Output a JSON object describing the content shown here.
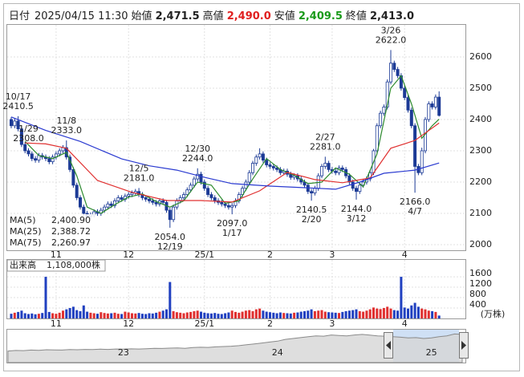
{
  "header": {
    "date_label": "日付",
    "date": "2025/04/15 11:30",
    "fields": [
      {
        "label": "始値",
        "value": "2,471.5"
      },
      {
        "label": "高値",
        "value": "2,490.0",
        "color": "#e02020"
      },
      {
        "label": "安値",
        "value": "2,409.5",
        "color": "#1a9a1a"
      },
      {
        "label": "終値",
        "value": "2,413.0"
      }
    ]
  },
  "chart_data": {
    "type": "candlestick",
    "categories": [
      null,
      null,
      null,
      null,
      null,
      null,
      null,
      null,
      null,
      null,
      null,
      null,
      null,
      "11",
      null,
      null,
      null,
      null,
      null,
      null,
      null,
      null,
      null,
      null,
      null,
      null,
      null,
      null,
      null,
      null,
      null,
      null,
      null,
      null,
      "12",
      null,
      null,
      null,
      null,
      null,
      null,
      null,
      null,
      null,
      null,
      null,
      null,
      null,
      null,
      null,
      null,
      null,
      null,
      null,
      null,
      null,
      "25/1",
      null,
      null,
      null,
      null,
      null,
      null,
      null,
      null,
      null,
      null,
      null,
      null,
      null,
      null,
      null,
      null,
      null,
      null,
      "2",
      null,
      null,
      null,
      null,
      null,
      null,
      null,
      null,
      null,
      null,
      null,
      null,
      null,
      null,
      null,
      null,
      null,
      "3",
      null,
      null,
      null,
      null,
      null,
      null,
      null,
      null,
      null,
      null,
      null,
      null,
      null,
      null,
      null,
      null,
      null,
      null,
      null,
      null,
      "4",
      null,
      null,
      null,
      null,
      null,
      null,
      null,
      null,
      null,
      null
    ],
    "ohlc": [
      [
        2400,
        2408,
        2372,
        2380
      ],
      [
        2380,
        2403,
        2372,
        2395
      ],
      [
        2395,
        2410.5,
        2362,
        2370
      ],
      [
        2370,
        2378,
        2312,
        2320
      ],
      [
        2320,
        2328,
        2292,
        2300
      ],
      [
        2300,
        2308,
        2282,
        2290
      ],
      [
        2290,
        2298,
        2267,
        2275
      ],
      [
        2275,
        2283,
        2262,
        2270
      ],
      [
        2270,
        2293,
        2262,
        2285
      ],
      [
        2285,
        2293,
        2272,
        2280
      ],
      [
        2280,
        2288,
        2267,
        2275
      ],
      [
        2275,
        2283,
        2257,
        2265
      ],
      [
        2265,
        2288,
        2257,
        2280
      ],
      [
        2280,
        2298,
        2272,
        2290
      ],
      [
        2290,
        2308,
        2282,
        2300
      ],
      [
        2300,
        2318,
        2292,
        2310
      ],
      [
        2310,
        2333,
        2272,
        2280
      ],
      [
        2280,
        2288,
        2232,
        2240
      ],
      [
        2240,
        2248,
        2182,
        2190
      ],
      [
        2190,
        2198,
        2142,
        2150
      ],
      [
        2150,
        2158,
        2112,
        2120
      ],
      [
        2120,
        2128,
        2092,
        2100
      ],
      [
        2100,
        2108,
        2082,
        2090
      ],
      [
        2090,
        2103,
        2082,
        2095
      ],
      [
        2095,
        2113,
        2087,
        2105
      ],
      [
        2105,
        2113,
        2092,
        2100
      ],
      [
        2100,
        2118,
        2092,
        2110
      ],
      [
        2110,
        2128,
        2102,
        2120
      ],
      [
        2120,
        2138,
        2112,
        2130
      ],
      [
        2130,
        2138,
        2117,
        2125
      ],
      [
        2125,
        2148,
        2117,
        2140
      ],
      [
        2140,
        2158,
        2132,
        2150
      ],
      [
        2150,
        2158,
        2137,
        2145
      ],
      [
        2145,
        2163,
        2137,
        2155
      ],
      [
        2155,
        2168,
        2147,
        2160
      ],
      [
        2160,
        2173,
        2152,
        2165
      ],
      [
        2165,
        2178,
        2157,
        2170
      ],
      [
        2170,
        2181,
        2152,
        2160
      ],
      [
        2160,
        2168,
        2142,
        2150
      ],
      [
        2150,
        2158,
        2137,
        2145
      ],
      [
        2145,
        2153,
        2132,
        2140
      ],
      [
        2140,
        2148,
        2127,
        2135
      ],
      [
        2135,
        2143,
        2122,
        2130
      ],
      [
        2130,
        2148,
        2122,
        2140
      ],
      [
        2140,
        2148,
        2127,
        2135
      ],
      [
        2135,
        2143,
        2102,
        2110
      ],
      [
        2110,
        2118,
        2054,
        2080
      ],
      [
        2080,
        2128,
        2072,
        2120
      ],
      [
        2120,
        2148,
        2112,
        2140
      ],
      [
        2140,
        2158,
        2132,
        2150
      ],
      [
        2150,
        2168,
        2142,
        2160
      ],
      [
        2160,
        2183,
        2152,
        2175
      ],
      [
        2175,
        2198,
        2167,
        2190
      ],
      [
        2190,
        2218,
        2182,
        2210
      ],
      [
        2210,
        2244,
        2202,
        2225
      ],
      [
        2225,
        2233,
        2192,
        2200
      ],
      [
        2200,
        2208,
        2172,
        2180
      ],
      [
        2180,
        2188,
        2152,
        2160
      ],
      [
        2160,
        2168,
        2142,
        2150
      ],
      [
        2150,
        2158,
        2132,
        2140
      ],
      [
        2140,
        2148,
        2127,
        2135
      ],
      [
        2135,
        2143,
        2122,
        2130
      ],
      [
        2130,
        2138,
        2117,
        2125
      ],
      [
        2125,
        2133,
        2112,
        2120
      ],
      [
        2120,
        2133,
        2097,
        2125
      ],
      [
        2125,
        2148,
        2117,
        2140
      ],
      [
        2140,
        2168,
        2132,
        2160
      ],
      [
        2160,
        2188,
        2152,
        2180
      ],
      [
        2180,
        2208,
        2172,
        2200
      ],
      [
        2200,
        2238,
        2192,
        2230
      ],
      [
        2230,
        2268,
        2222,
        2260
      ],
      [
        2260,
        2288,
        2252,
        2280
      ],
      [
        2280,
        2308,
        2272,
        2290
      ],
      [
        2290,
        2298,
        2262,
        2270
      ],
      [
        2270,
        2278,
        2247,
        2255
      ],
      [
        2255,
        2263,
        2242,
        2250
      ],
      [
        2250,
        2258,
        2237,
        2245
      ],
      [
        2245,
        2253,
        2232,
        2240
      ],
      [
        2240,
        2248,
        2222,
        2230
      ],
      [
        2230,
        2243,
        2222,
        2235
      ],
      [
        2235,
        2243,
        2217,
        2225
      ],
      [
        2225,
        2233,
        2207,
        2215
      ],
      [
        2215,
        2228,
        2207,
        2220
      ],
      [
        2220,
        2228,
        2202,
        2210
      ],
      [
        2210,
        2218,
        2192,
        2200
      ],
      [
        2200,
        2208,
        2182,
        2190
      ],
      [
        2190,
        2198,
        2162,
        2170
      ],
      [
        2170,
        2178,
        2140.5,
        2165
      ],
      [
        2165,
        2188,
        2157,
        2180
      ],
      [
        2180,
        2228,
        2172,
        2220
      ],
      [
        2220,
        2258,
        2212,
        2250
      ],
      [
        2250,
        2281,
        2242,
        2260
      ],
      [
        2260,
        2268,
        2232,
        2240
      ],
      [
        2240,
        2248,
        2227,
        2235
      ],
      [
        2235,
        2243,
        2222,
        2230
      ],
      [
        2230,
        2253,
        2222,
        2245
      ],
      [
        2245,
        2253,
        2232,
        2240
      ],
      [
        2240,
        2248,
        2212,
        2220
      ],
      [
        2220,
        2228,
        2192,
        2200
      ],
      [
        2200,
        2208,
        2172,
        2180
      ],
      [
        2180,
        2188,
        2144,
        2170
      ],
      [
        2170,
        2198,
        2162,
        2190
      ],
      [
        2190,
        2208,
        2182,
        2200
      ],
      [
        2200,
        2218,
        2192,
        2210
      ],
      [
        2210,
        2238,
        2202,
        2230
      ],
      [
        2230,
        2306,
        2222,
        2300
      ],
      [
        2300,
        2388,
        2292,
        2380
      ],
      [
        2380,
        2428,
        2372,
        2420
      ],
      [
        2420,
        2448,
        2412,
        2440
      ],
      [
        2440,
        2528,
        2432,
        2520
      ],
      [
        2520,
        2622,
        2512,
        2580
      ],
      [
        2580,
        2588,
        2552,
        2560
      ],
      [
        2560,
        2568,
        2532,
        2540
      ],
      [
        2540,
        2548,
        2492,
        2500
      ],
      [
        2500,
        2508,
        2462,
        2470
      ],
      [
        2470,
        2478,
        2422,
        2430
      ],
      [
        2430,
        2438,
        2372,
        2380
      ],
      [
        2380,
        2388,
        2166,
        2250
      ],
      [
        2250,
        2258,
        2222,
        2230
      ],
      [
        2230,
        2310,
        2222,
        2300
      ],
      [
        2300,
        2408,
        2292,
        2400
      ],
      [
        2400,
        2458,
        2392,
        2450
      ],
      [
        2450,
        2458,
        2432,
        2440
      ],
      [
        2440,
        2480,
        2432,
        2471.5
      ],
      [
        2471.5,
        2490,
        2409.5,
        2413
      ]
    ],
    "up_color": "#ffffff",
    "down_color": "#1c3b96",
    "edge_color": "#1c3b96",
    "ylim": [
      1982,
      2705
    ],
    "yticks": [
      2000,
      2100,
      2200,
      2300,
      2400,
      2500,
      2600
    ],
    "grid": true,
    "ma": [
      {
        "name": "MA(5)",
        "color": "#2e8b2e",
        "x": [
          4,
          8,
          12,
          16,
          19,
          22,
          26,
          30,
          34,
          38,
          42,
          46,
          50,
          54,
          58,
          62,
          66,
          70,
          74,
          78,
          82,
          86,
          90,
          94,
          98,
          102,
          106,
          110,
          113,
          116,
          119,
          122,
          124
        ],
        "values": [
          2330,
          2285,
          2275,
          2295,
          2220,
          2120,
          2100,
          2128,
          2152,
          2162,
          2138,
          2120,
          2140,
          2200,
          2190,
          2132,
          2140,
          2210,
          2275,
          2240,
          2222,
          2195,
          2200,
          2245,
          2225,
          2185,
          2290,
          2500,
          2540,
          2450,
          2340,
          2380,
          2400.9
        ],
        "last_label": "2,400.90"
      },
      {
        "name": "MA(25)",
        "color": "#e03030",
        "x": [
          4,
          10,
          16,
          25,
          35,
          45,
          55,
          64,
          72,
          80,
          88,
          96,
          104,
          110,
          117,
          124
        ],
        "values": [
          2325,
          2322,
          2308,
          2205,
          2167,
          2141,
          2141,
          2136,
          2172,
          2231,
          2208,
          2198,
          2213,
          2308,
          2333,
          2388.72
        ],
        "last_label": "2,388.72"
      },
      {
        "name": "MA(75)",
        "color": "#2a3ad0",
        "x": [
          0,
          10,
          20,
          32,
          40,
          48,
          56,
          64,
          75,
          85,
          94,
          101,
          108,
          117,
          124
        ],
        "values": [
          2408,
          2365,
          2330,
          2274,
          2252,
          2238,
          2215,
          2195,
          2187,
          2182,
          2177,
          2200,
          2228,
          2238,
          2260.97
        ],
        "last_label": "2,260.97"
      }
    ],
    "annotations": [
      {
        "date": "10/17",
        "value": 2410.5,
        "label": "2410.5"
      },
      {
        "date": "11/8",
        "value": 2333,
        "label": "2333.0"
      },
      {
        "date": "12/5",
        "value": 2181,
        "label": "2181.0"
      },
      {
        "date": "12/19",
        "value": 2054,
        "label": "2054.0"
      },
      {
        "date": "12/30",
        "value": 2244,
        "label": "2244.0"
      },
      {
        "date": "1/17",
        "value": 2097,
        "label": "2097.0"
      },
      {
        "date": "1/29",
        "value": 2308,
        "label": "2308.0"
      },
      {
        "date": "2/20",
        "value": 2140.5,
        "label": "2140.5"
      },
      {
        "date": "2/27",
        "value": 2281,
        "label": "2281.0"
      },
      {
        "date": "3/12",
        "value": 2144,
        "label": "2144.0"
      },
      {
        "date": "3/26",
        "value": 2622,
        "label": "2622.0"
      },
      {
        "date": "4/7",
        "value": 2166,
        "label": "2166.0"
      }
    ],
    "volume": {
      "type": "bar",
      "title": "出来高",
      "current": "1,108,000株",
      "unit": "(万株)",
      "up_color": "#e03030",
      "down_color": "#2040c0",
      "ylim": [
        0,
        2280
      ],
      "yticks": [
        400,
        800,
        1200,
        1600
      ],
      "values": [
        180,
        220,
        250,
        300,
        200,
        170,
        190,
        160,
        180,
        210,
        1600,
        250,
        200,
        180,
        220,
        300,
        350,
        400,
        450,
        320,
        280,
        500,
        260,
        220,
        200,
        180,
        240,
        210,
        190,
        200,
        220,
        180,
        170,
        260,
        230,
        200,
        190,
        210,
        180,
        170,
        200,
        190,
        220,
        260,
        300,
        350,
        1400,
        280,
        240,
        220,
        200,
        230,
        250,
        280,
        300,
        260,
        220,
        200,
        190,
        210,
        180,
        170,
        200,
        230,
        300,
        250,
        220,
        260,
        300,
        320,
        280,
        350,
        380,
        300,
        260,
        240,
        220,
        200,
        230,
        210,
        200,
        190,
        220,
        230,
        260,
        280,
        300,
        350,
        280,
        300,
        320,
        260,
        240,
        230,
        220,
        210,
        250,
        280,
        300,
        320,
        350,
        280,
        260,
        300,
        350,
        420,
        380,
        360,
        400,
        450,
        380,
        320,
        300,
        1600,
        420,
        380,
        500,
        600,
        450,
        380,
        350,
        300,
        280,
        250,
        110.8
      ]
    },
    "navigator": {
      "type": "area",
      "color": "#d6d6d6",
      "line_color": "#8a8a8a",
      "ylim": [
        800,
        2600
      ],
      "categories": [
        null,
        null,
        null,
        null,
        null,
        null,
        null,
        null,
        null,
        null,
        null,
        null,
        null,
        null,
        null,
        "23",
        null,
        null,
        null,
        null,
        null,
        null,
        null,
        null,
        null,
        null,
        null,
        null,
        null,
        null,
        null,
        null,
        null,
        null,
        null,
        "24",
        null,
        null,
        null,
        null,
        null,
        null,
        null,
        null,
        null,
        null,
        null,
        null,
        null,
        null,
        null,
        null,
        null,
        null,
        null,
        "25",
        null,
        null,
        null,
        null
      ],
      "values": [
        1450,
        1480,
        1470,
        1500,
        1490,
        1520,
        1510,
        1500,
        1530,
        1520,
        1540,
        1530,
        1550,
        1540,
        1560,
        1550,
        1570,
        1560,
        1580,
        1600,
        1590,
        1610,
        1620,
        1600,
        1640,
        1660,
        1650,
        1680,
        1700,
        1720,
        1750,
        1800,
        1850,
        1900,
        1950,
        2000,
        2100,
        2150,
        2200,
        2250,
        2300,
        2280,
        2350,
        2320,
        2300,
        2350,
        2380,
        2340,
        2300,
        2280,
        2250,
        2220,
        2180,
        2200,
        2150,
        2180,
        2250,
        2300,
        2400,
        2380
      ]
    }
  }
}
